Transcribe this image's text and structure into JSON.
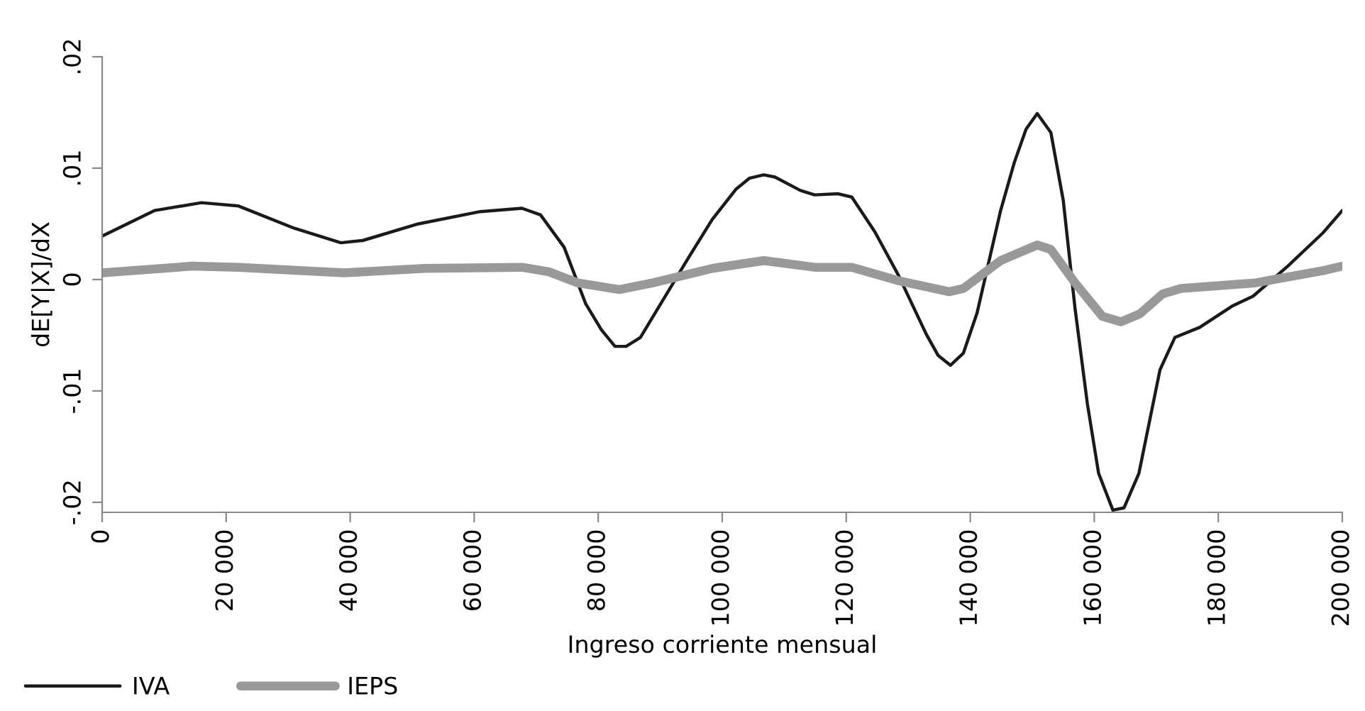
{
  "chart_data": {
    "type": "line",
    "xlabel": "Ingreso corriente mensual",
    "ylabel": "dE[Y|X]/dX",
    "xlim": [
      0,
      200000
    ],
    "xticks": [
      0,
      {
        "value": 20000,
        "label": "20 000"
      },
      {
        "value": 40000,
        "label": "40 000"
      },
      {
        "value": 60000,
        "label": "60 000"
      },
      {
        "value": 80000,
        "label": "80 000"
      },
      {
        "value": 100000,
        "label": "100 000"
      },
      {
        "value": 120000,
        "label": "120 000"
      },
      {
        "value": 140000,
        "label": "140 000"
      },
      {
        "value": 160000,
        "label": "160 000"
      },
      {
        "value": 180000,
        "label": "180 000"
      },
      {
        "value": 200000,
        "label": "200 000"
      }
    ],
    "ylim": [
      -0.0209,
      0.02
    ],
    "yticks": [
      {
        "value": -0.02,
        "label": "-.02"
      },
      {
        "value": -0.01,
        "label": "-.01"
      },
      0,
      {
        "value": 0.01,
        "label": ".01"
      },
      {
        "value": 0.02,
        "label": ".02"
      }
    ],
    "grid": false,
    "legend": "bottom left",
    "line_style": "solid",
    "marker": "none",
    "series": [
      {
        "name": "IVA",
        "color": "#1a1a1a",
        "x": [
          0,
          8500,
          16000,
          22000,
          31000,
          38500,
          42000,
          51000,
          61000,
          67700,
          70700,
          74500,
          78000,
          80500,
          82700,
          84500,
          86800,
          94600,
          98400,
          102200,
          104400,
          106700,
          108500,
          112600,
          114900,
          118700,
          120900,
          124600,
          128400,
          132900,
          134800,
          136800,
          138900,
          141100,
          144900,
          147100,
          149000,
          150800,
          153000,
          155000,
          156900,
          158900,
          160700,
          163000,
          164800,
          167200,
          170600,
          173000,
          177000,
          182200,
          185600,
          191200,
          196900,
          200000
        ],
        "values": [
          0.0039,
          0.0062,
          0.0069,
          0.0066,
          0.0046,
          0.0033,
          0.0035,
          0.005,
          0.0061,
          0.0064,
          0.0058,
          0.0029,
          -0.0022,
          -0.0045,
          -0.006,
          -0.006,
          -0.0052,
          0.002,
          0.0054,
          0.0081,
          0.0091,
          0.0094,
          0.0092,
          0.008,
          0.0076,
          0.0077,
          0.0074,
          0.0043,
          0.0004,
          -0.0049,
          -0.0068,
          -0.0077,
          -0.0066,
          -0.003,
          0.0062,
          0.0105,
          0.0135,
          0.0149,
          0.0132,
          0.0071,
          -0.0026,
          -0.0112,
          -0.0174,
          -0.0207,
          -0.0205,
          -0.0174,
          -0.0081,
          -0.0052,
          -0.0043,
          -0.0024,
          -0.0015,
          0.0012,
          0.0042,
          0.0062
        ]
      },
      {
        "name": "IEPS",
        "color": "#999999",
        "x": [
          0,
          14500,
          22000,
          39000,
          52000,
          67700,
          72000,
          76700,
          83400,
          88800,
          98400,
          106700,
          114900,
          120900,
          128400,
          136600,
          138900,
          144900,
          150800,
          153000,
          156900,
          161300,
          164300,
          167300,
          171000,
          174000,
          186000,
          196900,
          200000
        ],
        "values": [
          0.0006,
          0.0012,
          0.0011,
          0.0006,
          0.001,
          0.0011,
          0.0007,
          -0.0003,
          -0.0009,
          -0.0003,
          0.001,
          0.0017,
          0.0011,
          0.0011,
          -0.0001,
          -0.0011,
          -0.0008,
          0.0017,
          0.0031,
          0.0027,
          -0.0003,
          -0.0033,
          -0.0038,
          -0.0031,
          -0.0013,
          -0.0008,
          -0.0003,
          0.0008,
          0.0012
        ]
      }
    ]
  }
}
